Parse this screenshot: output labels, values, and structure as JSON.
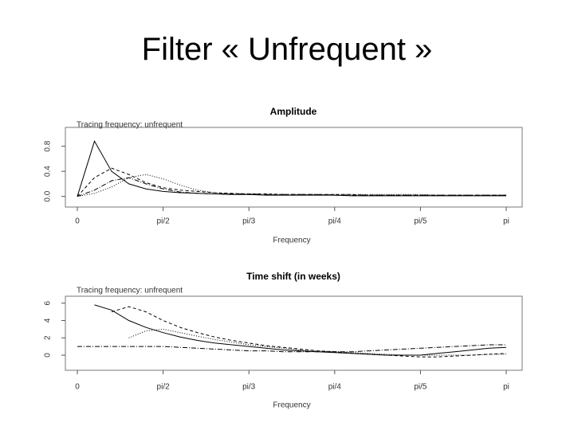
{
  "title": "Filter « Unfrequent »",
  "chart_data": [
    {
      "type": "line",
      "title": "Amplitude",
      "subtitle": "Tracing frequency: unfrequent",
      "x_label": "Frequency",
      "x": [
        0,
        0.2,
        0.4,
        0.6,
        0.8,
        1,
        1.2,
        1.4,
        1.6,
        1.8,
        2,
        2.2,
        2.4,
        2.6,
        2.8,
        3,
        3.2,
        3.4,
        3.6,
        3.8,
        4,
        4.2,
        4.4,
        4.6,
        4.8,
        5
      ],
      "xlim": [
        0,
        5
      ],
      "xticks": [
        {
          "value": 0,
          "label": "0"
        },
        {
          "value": 1,
          "label": "pi/2"
        },
        {
          "value": 2,
          "label": "pi/3"
        },
        {
          "value": 3,
          "label": "pi/4"
        },
        {
          "value": 4,
          "label": "pi/5"
        },
        {
          "value": 5,
          "label": "pi"
        }
      ],
      "ylim": [
        -0.08,
        1.1
      ],
      "yticks": [
        {
          "value": 0,
          "label": "0.0"
        },
        {
          "value": 0.4,
          "label": "0.4"
        },
        {
          "value": 0.8,
          "label": "0.8"
        }
      ],
      "series": [
        {
          "color": "#000000",
          "dash": "none",
          "values": [
            0,
            0.88,
            0.4,
            0.2,
            0.12,
            0.08,
            0.06,
            0.05,
            0.04,
            0.03,
            0.03,
            0.02,
            0.02,
            0.02,
            0.02,
            0.02,
            0.01,
            0.01,
            0.01,
            0.01,
            0.01,
            0.01,
            0.01,
            0.01,
            0.01,
            0.01
          ]
        },
        {
          "color": "#000000",
          "dash": "4 3",
          "values": [
            0,
            0.3,
            0.45,
            0.35,
            0.22,
            0.14,
            0.1,
            0.08,
            0.06,
            0.05,
            0.04,
            0.04,
            0.03,
            0.03,
            0.03,
            0.03,
            0.03,
            0.02,
            0.02,
            0.02,
            0.02,
            0.02,
            0.02,
            0.02,
            0.02,
            0.02
          ]
        },
        {
          "color": "#000000",
          "dash": "1 2",
          "values": [
            0,
            0.05,
            0.15,
            0.3,
            0.35,
            0.28,
            0.18,
            0.1,
            0.06,
            0.04,
            0.03,
            0.03,
            0.03,
            0.03,
            0.03,
            0.03,
            0.03,
            0.03,
            0.03,
            0.03,
            0.03,
            0.02,
            0.02,
            0.02,
            0.02,
            0.02
          ]
        },
        {
          "color": "#000000",
          "dash": "6 2 1 2",
          "values": [
            0,
            0.1,
            0.25,
            0.3,
            0.2,
            0.12,
            0.07,
            0.05,
            0.04,
            0.04,
            0.04,
            0.03,
            0.03,
            0.03,
            0.03,
            0.02,
            0.02,
            0.02,
            0.02,
            0.02,
            0.02,
            0.02,
            0.02,
            0.02,
            0.02,
            0.02
          ]
        }
      ]
    },
    {
      "type": "line",
      "title": "Time shift (in weeks)",
      "subtitle": "Tracing frequency: unfrequent",
      "x_label": "Frequency",
      "x": [
        0,
        0.2,
        0.4,
        0.6,
        0.8,
        1,
        1.2,
        1.4,
        1.6,
        1.8,
        2,
        2.2,
        2.4,
        2.6,
        2.8,
        3,
        3.2,
        3.4,
        3.6,
        3.8,
        4,
        4.2,
        4.4,
        4.6,
        4.8,
        5
      ],
      "xlim": [
        0,
        5
      ],
      "xticks": [
        {
          "value": 0,
          "label": "0"
        },
        {
          "value": 1,
          "label": "pi/2"
        },
        {
          "value": 2,
          "label": "pi/3"
        },
        {
          "value": 3,
          "label": "pi/4"
        },
        {
          "value": 4,
          "label": "pi/5"
        },
        {
          "value": 5,
          "label": "pi"
        }
      ],
      "ylim": [
        -1.1,
        6.8
      ],
      "yticks": [
        0,
        2,
        4,
        6
      ],
      "series": [
        {
          "color": "#000000",
          "dash": "none",
          "values": [
            null,
            5.8,
            5.2,
            4,
            3.2,
            2.6,
            2.1,
            1.7,
            1.4,
            1.2,
            1,
            0.8,
            0.6,
            0.5,
            0.4,
            0.3,
            0.2,
            0.1,
            0,
            0,
            0,
            0.2,
            0.4,
            0.6,
            0.8,
            0.9
          ]
        },
        {
          "color": "#000000",
          "dash": "4 3",
          "values": [
            null,
            null,
            5,
            5.6,
            5,
            4,
            3.2,
            2.6,
            2.1,
            1.7,
            1.4,
            1.1,
            0.9,
            0.7,
            0.5,
            0.4,
            0.2,
            0.1,
            0,
            -0.1,
            -0.2,
            -0.2,
            -0.1,
            0,
            0.1,
            0.2
          ]
        },
        {
          "color": "#000000",
          "dash": "1 2",
          "values": [
            null,
            null,
            null,
            2,
            2.8,
            3,
            2.6,
            2.2,
            1.8,
            1.5,
            1.2,
            1,
            0.8,
            0.6,
            0.5,
            0.4,
            0.3,
            0.2,
            0.1,
            0,
            0,
            0,
            0,
            0,
            0.1,
            0.1
          ]
        },
        {
          "color": "#000000",
          "dash": "6 2 1 2",
          "values": [
            1,
            1,
            1,
            1,
            1,
            1,
            0.9,
            0.8,
            0.7,
            0.6,
            0.5,
            0.5,
            0.4,
            0.4,
            0.4,
            0.4,
            0.4,
            0.5,
            0.6,
            0.7,
            0.8,
            0.9,
            1,
            1.1,
            1.2,
            1.2
          ]
        }
      ]
    }
  ]
}
